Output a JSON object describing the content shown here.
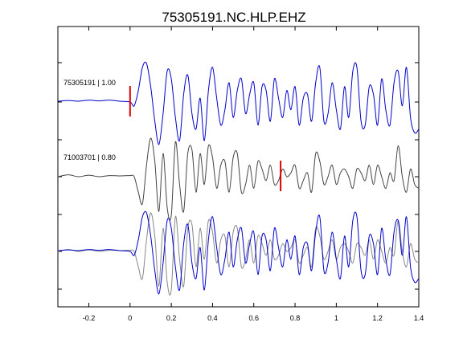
{
  "chart_data": {
    "type": "line",
    "title": "75305191.NC.HLP.EHZ",
    "xlabel": "",
    "ylabel": "",
    "xlim": [
      -0.35,
      1.4
    ],
    "x_ticks": [
      -0.2,
      0,
      0.2,
      0.4,
      0.6,
      0.8,
      1,
      1.2,
      1.4
    ],
    "x_tick_labels": [
      "-0.2",
      "0",
      "0.2",
      "0.4",
      "0.6",
      "0.8",
      "1",
      "1.2",
      "1.4"
    ],
    "grid": false,
    "legend": "none",
    "colors": {
      "primary": "#0000cc",
      "secondary": "#444444",
      "overlay_gray": "#888888",
      "pick": "#dd0000"
    },
    "panels": [
      {
        "label": "75305191 | 1.00",
        "pick_x": 0.0,
        "series": [
          {
            "style": "primary",
            "trace": "A"
          }
        ]
      },
      {
        "label": "71003701 | 0.80",
        "pick_x": 0.73,
        "series": [
          {
            "style": "secondary",
            "trace": "B"
          }
        ]
      },
      {
        "label": "",
        "pick_x": null,
        "series": [
          {
            "style": "overlay_gray",
            "trace": "B"
          },
          {
            "style": "primary",
            "trace": "A"
          }
        ]
      }
    ],
    "waveform_samples": {
      "x": [
        -0.35,
        -0.3,
        -0.25,
        -0.2,
        -0.15,
        -0.1,
        -0.05,
        0,
        0.02,
        0.04,
        0.06,
        0.08,
        0.1,
        0.12,
        0.14,
        0.16,
        0.18,
        0.2,
        0.22,
        0.24,
        0.26,
        0.28,
        0.3,
        0.32,
        0.34,
        0.36,
        0.38,
        0.4,
        0.42,
        0.44,
        0.46,
        0.48,
        0.5,
        0.52,
        0.54,
        0.56,
        0.58,
        0.6,
        0.62,
        0.64,
        0.66,
        0.68,
        0.7,
        0.72,
        0.74,
        0.76,
        0.78,
        0.8,
        0.82,
        0.84,
        0.86,
        0.88,
        0.9,
        0.92,
        0.94,
        0.96,
        0.98,
        1,
        1.02,
        1.04,
        1.06,
        1.08,
        1.1,
        1.12,
        1.14,
        1.16,
        1.18,
        1.2,
        1.22,
        1.24,
        1.26,
        1.28,
        1.3,
        1.32,
        1.34,
        1.36,
        1.38,
        1.4
      ],
      "A": [
        0.02,
        0.04,
        0.02,
        0.05,
        0.03,
        0.05,
        0.02,
        0.0,
        -0.1,
        0.3,
        0.9,
        1.0,
        0.4,
        -0.5,
        -1.1,
        -0.3,
        0.8,
        0.6,
        -0.4,
        -1.0,
        0.2,
        0.7,
        -0.3,
        -0.7,
        0.1,
        -1.0,
        0.3,
        0.9,
        0.1,
        -0.6,
        -0.2,
        0.5,
        -0.4,
        0.3,
        0.6,
        -0.3,
        0.2,
        0.5,
        -0.6,
        0.4,
        0.3,
        -0.5,
        0.6,
        0.1,
        -0.4,
        0.3,
        -0.2,
        0.4,
        -0.6,
        0.1,
        0.2,
        -0.5,
        0.5,
        0.9,
        -0.5,
        -0.3,
        0.5,
        -0.2,
        -0.7,
        0.4,
        -0.4,
        0.8,
        0.9,
        -0.5,
        -0.6,
        0.4,
        0.2,
        -0.6,
        0.6,
        -0.2,
        -0.6,
        0.5,
        0.8,
        -0.1,
        0.9,
        -0.4,
        -0.8,
        -0.7
      ],
      "B": [
        0.0,
        0.05,
        0.0,
        0.04,
        0.0,
        0.03,
        0.02,
        0.03,
        0.0,
        -0.4,
        -0.7,
        0.3,
        1.0,
        0.4,
        -0.9,
        0.6,
        -0.8,
        -1.0,
        0.9,
        -0.2,
        -0.9,
        0.6,
        0.7,
        -0.4,
        0.6,
        -0.2,
        0.8,
        0.5,
        -0.3,
        0.3,
        0.4,
        -0.4,
        0.5,
        0.6,
        -0.4,
        -0.2,
        0.3,
        -0.3,
        0.4,
        0.2,
        -0.1,
        0.3,
        -0.2,
        -0.1,
        0.2,
        0.0,
        0.1,
        0.3,
        -0.3,
        -0.1,
        0.1,
        -0.4,
        0.6,
        0.4,
        -0.2,
        0.0,
        0.3,
        -0.2,
        0.1,
        0.2,
        0.0,
        -0.3,
        0.2,
        0.1,
        -0.1,
        0.3,
        -0.2,
        0.3,
        0.0,
        -0.3,
        0.1,
        -0.1,
        0.8,
        0.0,
        -0.4,
        0.2,
        -0.2,
        -0.3
      ]
    }
  }
}
